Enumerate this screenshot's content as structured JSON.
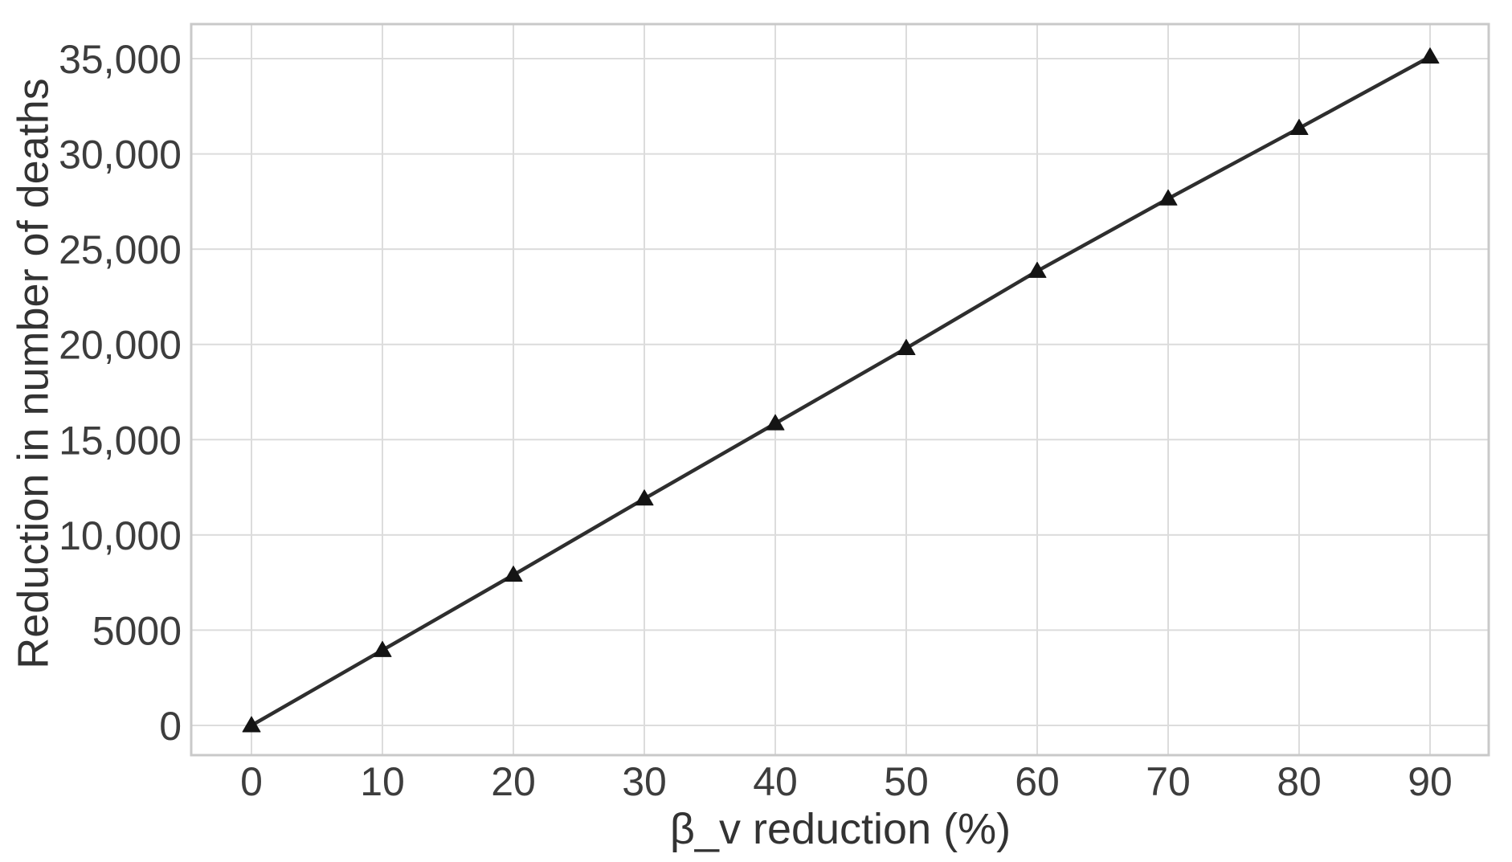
{
  "chart_data": {
    "type": "line",
    "title": "",
    "xlabel": "β_v reduction (%)",
    "ylabel": "Reduction in number of deaths",
    "x": [
      0,
      10,
      20,
      30,
      40,
      50,
      60,
      70,
      80,
      90
    ],
    "series": [
      {
        "name": "reduction in number of deaths",
        "values": [
          0,
          3950,
          7900,
          11900,
          15850,
          19800,
          23850,
          27650,
          31350,
          35100
        ]
      }
    ],
    "x_ticks": [
      0,
      10,
      20,
      30,
      40,
      50,
      60,
      70,
      80,
      90
    ],
    "x_tick_labels": [
      "0",
      "10",
      "20",
      "30",
      "40",
      "50",
      "60",
      "70",
      "80",
      "90"
    ],
    "y_ticks": [
      0,
      5000,
      10000,
      15000,
      20000,
      25000,
      30000,
      35000
    ],
    "y_tick_labels": [
      "0",
      "5000",
      "10,000",
      "15,000",
      "20,000",
      "25,000",
      "30,000",
      "35,000"
    ],
    "xlim": [
      -4.7,
      94.5
    ],
    "ylim": [
      -1650,
      36900
    ],
    "grid": true,
    "legend": false,
    "marker": "triangle-up",
    "colors": {
      "line": "#2e2e2e",
      "marker": "#141414",
      "grid": "#dcdcdc",
      "panel_border": "#c9c9c9",
      "tick_text": "#3d3d3d",
      "title_text": "#333333",
      "background": "#ffffff"
    }
  }
}
